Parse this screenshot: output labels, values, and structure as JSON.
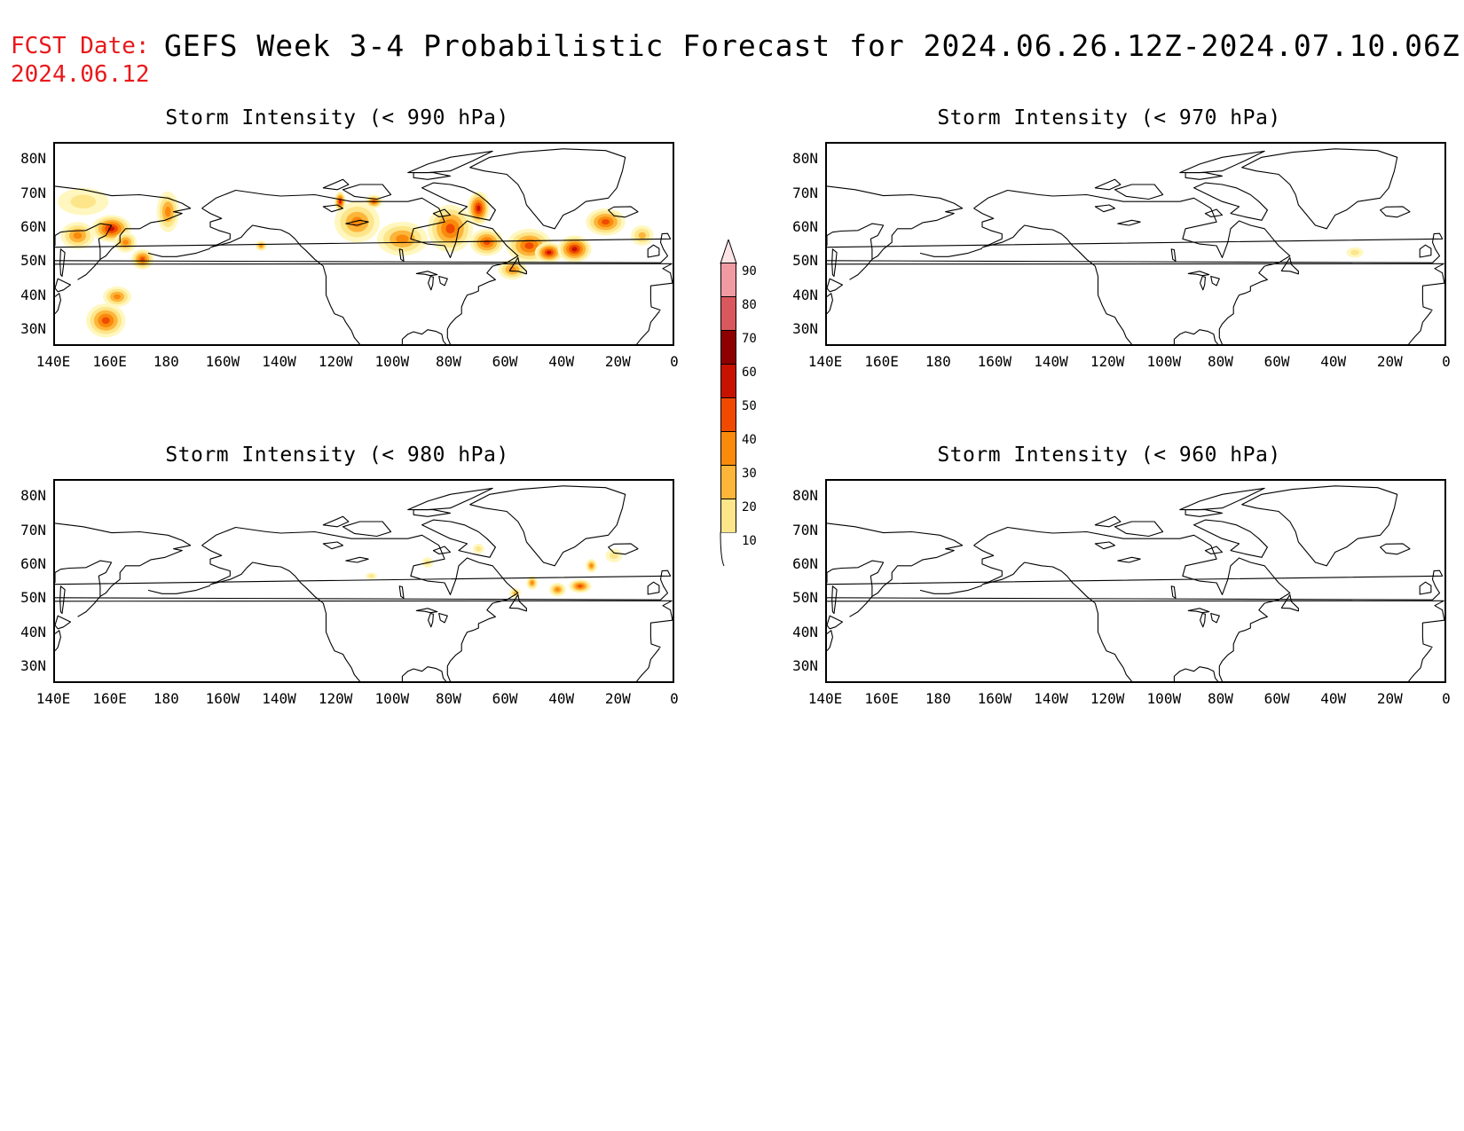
{
  "header": {
    "fcst_label": "FCST Date:",
    "fcst_date": "2024.06.12",
    "title": "GEFS Week 3-4 Probabilistic Forecast for 2024.06.26.12Z-2024.07.10.06Z"
  },
  "colors": {
    "fcst": "#e8191b",
    "coast": "#000000"
  },
  "lat_ticks": [
    "80N",
    "70N",
    "60N",
    "50N",
    "40N",
    "30N"
  ],
  "lon_ticks": [
    "140E",
    "160E",
    "180",
    "160W",
    "140W",
    "120W",
    "100W",
    "80W",
    "60W",
    "40W",
    "20W",
    "0"
  ],
  "colorbar": {
    "levels": [
      "10",
      "20",
      "30",
      "40",
      "50",
      "60",
      "70",
      "80",
      "90"
    ],
    "colors": [
      "#fff7bf",
      "#fde58a",
      "#fdb53a",
      "#f98a0c",
      "#f04a00",
      "#c81200",
      "#8e0000",
      "#d9585d",
      "#f29aa2",
      "#fde3e6"
    ]
  },
  "panels": [
    {
      "id": "p990",
      "title": "Storm Intensity (< 990 hPa)",
      "blobs": [
        {
          "lon": 148,
          "lat": 58,
          "rx": 6,
          "ry": 4,
          "level": 3
        },
        {
          "lon": 160,
          "lat": 60,
          "rx": 7,
          "ry": 4,
          "level": 5
        },
        {
          "lon": 165,
          "lat": 56,
          "rx": 4,
          "ry": 3,
          "level": 3
        },
        {
          "lon": 171,
          "lat": 51,
          "rx": 4,
          "ry": 3,
          "level": 4
        },
        {
          "lon": 158,
          "lat": 33,
          "rx": 7,
          "ry": 5,
          "level": 4
        },
        {
          "lon": 162,
          "lat": 40,
          "rx": 5,
          "ry": 3,
          "level": 3
        },
        {
          "lon": 180,
          "lat": 65,
          "rx": 4,
          "ry": 6,
          "level": 3
        },
        {
          "lon": 150,
          "lat": 68,
          "rx": 9,
          "ry": 4,
          "level": 1
        },
        {
          "lon": -113,
          "lat": 62,
          "rx": 8,
          "ry": 6,
          "level": 3
        },
        {
          "lon": -97,
          "lat": 57,
          "rx": 9,
          "ry": 5,
          "level": 3
        },
        {
          "lon": -80,
          "lat": 60,
          "rx": 8,
          "ry": 7,
          "level": 4
        },
        {
          "lon": -70,
          "lat": 66,
          "rx": 4,
          "ry": 5,
          "level": 5
        },
        {
          "lon": -67,
          "lat": 56,
          "rx": 6,
          "ry": 4,
          "level": 4
        },
        {
          "lon": -52,
          "lat": 55,
          "rx": 8,
          "ry": 5,
          "level": 4
        },
        {
          "lon": -45,
          "lat": 53,
          "rx": 5,
          "ry": 3,
          "level": 5
        },
        {
          "lon": -36,
          "lat": 54,
          "rx": 6,
          "ry": 4,
          "level": 5
        },
        {
          "lon": -25,
          "lat": 62,
          "rx": 7,
          "ry": 4,
          "level": 4
        },
        {
          "lon": -58,
          "lat": 48,
          "rx": 5,
          "ry": 3,
          "level": 3
        },
        {
          "lon": -12,
          "lat": 58,
          "rx": 4,
          "ry": 3,
          "level": 2
        },
        {
          "lon": -119,
          "lat": 68,
          "rx": 2,
          "ry": 3,
          "level": 5
        },
        {
          "lon": -107,
          "lat": 68,
          "rx": 3,
          "ry": 2,
          "level": 4
        },
        {
          "lon": -147,
          "lat": 55,
          "rx": 2,
          "ry": 1.5,
          "level": 3
        }
      ]
    },
    {
      "id": "p970",
      "title": "Storm Intensity (< 970 hPa)",
      "blobs": [
        {
          "lon": -33,
          "lat": 53,
          "rx": 3,
          "ry": 1.5,
          "level": 1
        }
      ]
    },
    {
      "id": "p980",
      "title": "Storm Intensity (< 980 hPa)",
      "blobs": [
        {
          "lon": -42,
          "lat": 53,
          "rx": 3,
          "ry": 2,
          "level": 3
        },
        {
          "lon": -34,
          "lat": 54,
          "rx": 4,
          "ry": 2,
          "level": 4
        },
        {
          "lon": -30,
          "lat": 60,
          "rx": 2,
          "ry": 2,
          "level": 3
        },
        {
          "lon": -51,
          "lat": 55,
          "rx": 2,
          "ry": 2,
          "level": 3
        },
        {
          "lon": -57,
          "lat": 52,
          "rx": 2,
          "ry": 1.5,
          "level": 2
        },
        {
          "lon": -22,
          "lat": 63,
          "rx": 3,
          "ry": 2,
          "level": 1
        },
        {
          "lon": -88,
          "lat": 61,
          "rx": 2,
          "ry": 1.5,
          "level": 1
        },
        {
          "lon": -108,
          "lat": 57,
          "rx": 2,
          "ry": 1,
          "level": 1
        },
        {
          "lon": -70,
          "lat": 65,
          "rx": 2,
          "ry": 1.5,
          "level": 1
        }
      ]
    },
    {
      "id": "p960",
      "title": "Storm Intensity (< 960 hPa)",
      "blobs": []
    }
  ]
}
